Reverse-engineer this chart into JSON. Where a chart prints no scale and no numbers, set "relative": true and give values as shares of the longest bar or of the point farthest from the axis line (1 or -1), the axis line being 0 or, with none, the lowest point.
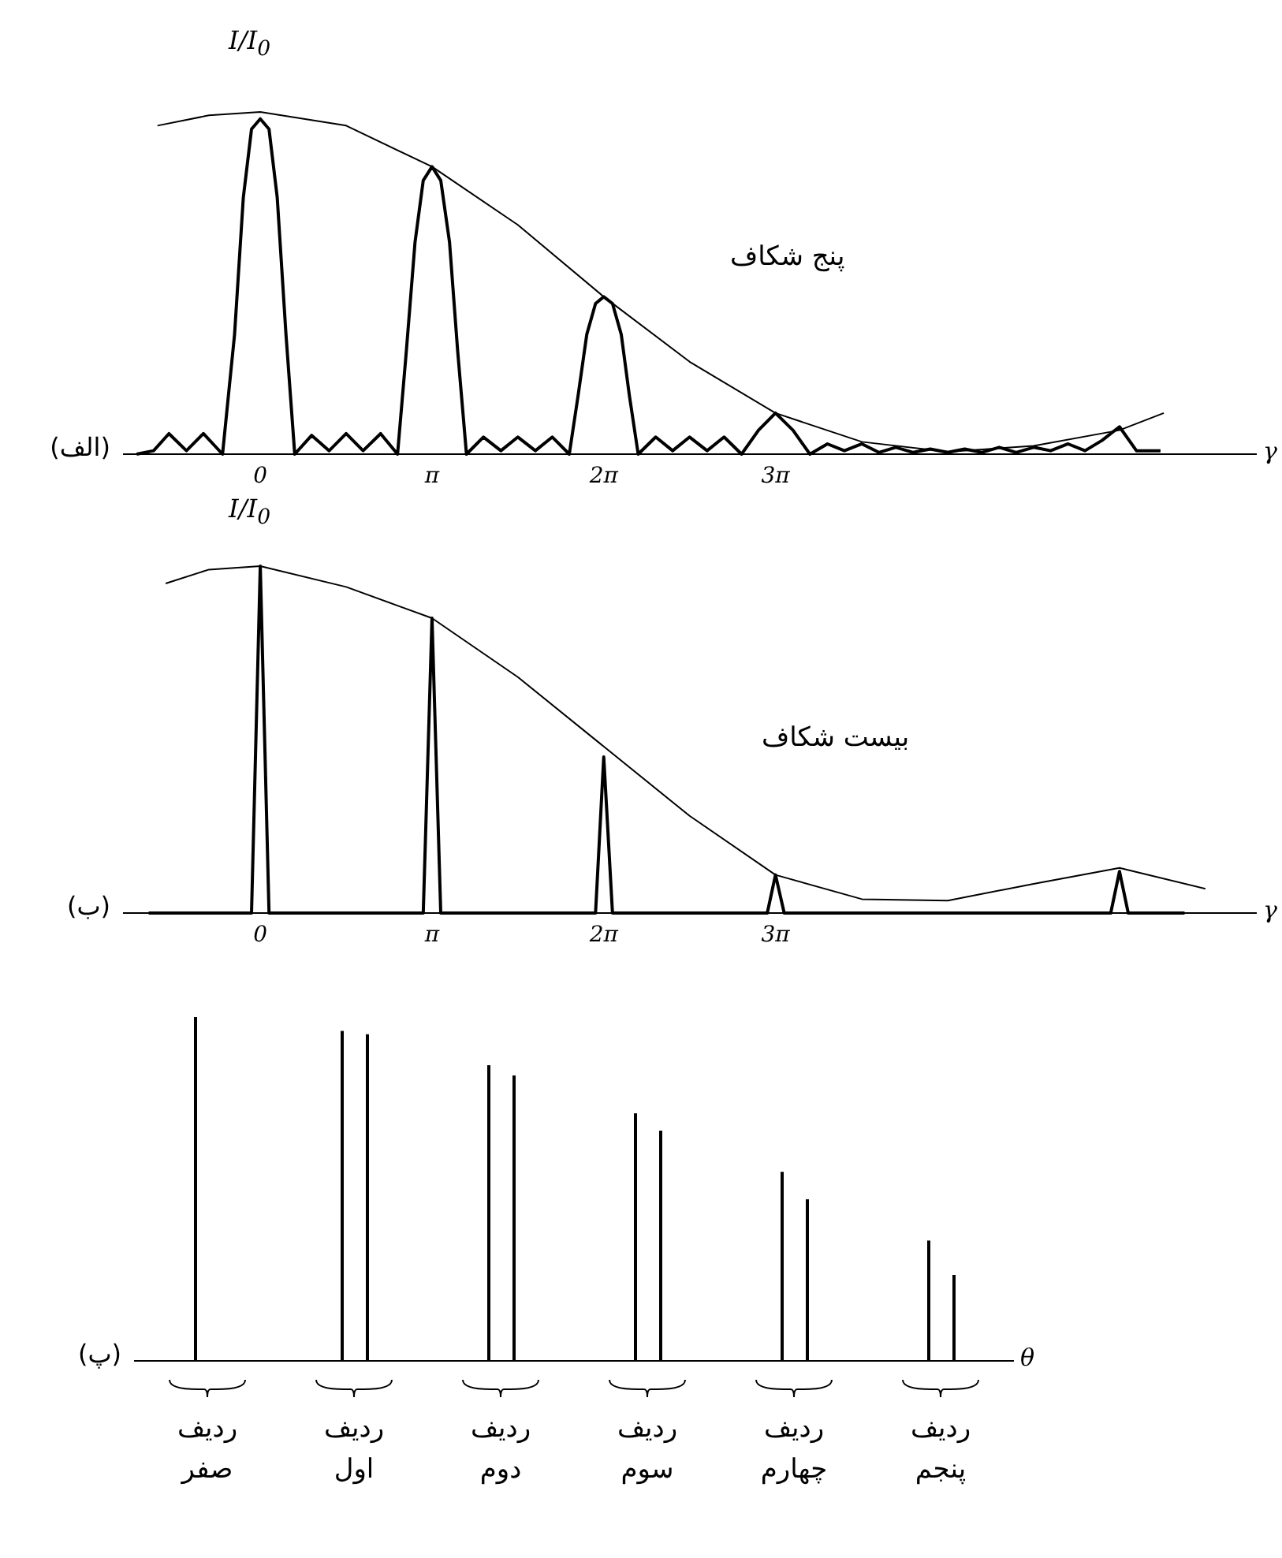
{
  "chart_data": [
    {
      "type": "line",
      "title": "(الف)",
      "ylabel": "I/I$_{0}$",
      "xlabel": "γ",
      "relative": true,
      "annotations": [
        "پنج شکاف"
      ],
      "xlim": [
        -2.51,
        18.22
      ],
      "xticks": [
        0,
        {
          "value": 3.14,
          "label": "π"
        },
        {
          "value": 6.28,
          "label": "2π"
        },
        {
          "value": 9.42,
          "label": "3π"
        }
      ],
      "series": [
        {
          "color": "#000000",
          "x": [
            -1.88,
            -0.94,
            0,
            1.57,
            3.14,
            4.71,
            6.28,
            7.85,
            9.42,
            11.0,
            12.57,
            14.14,
            15.71,
            16.52
          ],
          "values": [
            0.96,
            0.99,
            1.0,
            0.96,
            0.84,
            0.67,
            0.46,
            0.27,
            0.12,
            0.036,
            0.007,
            0.024,
            0.07,
            0.12
          ]
        },
        {
          "color": "#000000",
          "x": [
            -2.26,
            -1.95,
            -1.67,
            -1.35,
            -1.04,
            -0.69,
            -0.47,
            -0.31,
            -0.16,
            0,
            0.16,
            0.31,
            0.47,
            0.63,
            0.94,
            1.26,
            1.57,
            1.88,
            2.2,
            2.51,
            2.67,
            2.83,
            2.98,
            3.14,
            3.3,
            3.46,
            3.61,
            3.77,
            4.08,
            4.4,
            4.71,
            5.03,
            5.34,
            5.65,
            5.81,
            5.97,
            6.13,
            6.28,
            6.44,
            6.6,
            6.75,
            6.91,
            7.23,
            7.54,
            7.85,
            8.17,
            8.48,
            8.8,
            9.11,
            9.42,
            9.74,
            10.05,
            10.37,
            10.68,
            11.0,
            11.31,
            11.62,
            11.94,
            12.25,
            12.57,
            12.88,
            13.19,
            13.51,
            13.82,
            14.14,
            14.45,
            14.77,
            15.08,
            15.39,
            15.71,
            16.02,
            16.46
          ],
          "values": [
            0,
            0.01,
            0.06,
            0.01,
            0.06,
            0,
            0.35,
            0.75,
            0.95,
            0.98,
            0.95,
            0.75,
            0.35,
            0,
            0.055,
            0.01,
            0.06,
            0.01,
            0.06,
            0,
            0.3,
            0.62,
            0.8,
            0.84,
            0.8,
            0.62,
            0.3,
            0,
            0.05,
            0.01,
            0.05,
            0.01,
            0.05,
            0,
            0.17,
            0.35,
            0.44,
            0.46,
            0.44,
            0.35,
            0.17,
            0,
            0.05,
            0.01,
            0.05,
            0.01,
            0.05,
            0,
            0.07,
            0.12,
            0.07,
            0,
            0.03,
            0.01,
            0.03,
            0.005,
            0.02,
            0.005,
            0.015,
            0.005,
            0.015,
            0.005,
            0.02,
            0.005,
            0.02,
            0.01,
            0.03,
            0.01,
            0.04,
            0.08,
            0.01,
            0.01
          ]
        }
      ]
    },
    {
      "type": "line",
      "title": "(ب)",
      "ylabel": "I/I$_{0}$",
      "xlabel": "γ",
      "relative": true,
      "annotations": [
        "بیست شکاف"
      ],
      "xlim": [
        -2.51,
        18.22
      ],
      "xticks": [
        0,
        {
          "value": 3.14,
          "label": "π"
        },
        {
          "value": 6.28,
          "label": "2π"
        },
        {
          "value": 9.42,
          "label": "3π"
        }
      ],
      "series": [
        {
          "color": "#000000",
          "x": [
            -1.73,
            -0.94,
            0,
            1.57,
            3.14,
            4.71,
            6.28,
            7.85,
            9.42,
            11.0,
            12.57,
            14.14,
            15.71,
            17.28
          ],
          "values": [
            0.95,
            0.99,
            1.0,
            0.94,
            0.85,
            0.68,
            0.48,
            0.28,
            0.11,
            0.04,
            0.036,
            0.084,
            0.13,
            0.07
          ]
        },
        {
          "color": "#000000",
          "x": [
            -2.04,
            -0.16,
            0,
            0.16,
            2.98,
            3.14,
            3.3,
            6.13,
            6.28,
            6.44,
            9.27,
            9.42,
            9.58,
            15.55,
            15.71,
            15.87,
            16.9
          ],
          "values": [
            0,
            0,
            1.0,
            0,
            0,
            0.85,
            0,
            0,
            0.45,
            0,
            0,
            0.11,
            0,
            0,
            0.12,
            0,
            0
          ]
        }
      ]
    },
    {
      "type": "bar",
      "title": "(پ)",
      "xlabel": "θ",
      "relative": true,
      "categories": [
        "ردیف صفر",
        "ردیف اول",
        "ردیف دوم",
        "ردیف سوم",
        "ردیف چهارم",
        "ردیف پنجم"
      ],
      "series": [
        {
          "color": "#000000",
          "values": [
            1.0,
            0.96,
            0.86,
            0.72,
            0.55,
            0.35
          ]
        },
        {
          "color": "#000000",
          "values": [
            null,
            0.95,
            0.83,
            0.67,
            0.47,
            0.25
          ]
        }
      ]
    }
  ]
}
